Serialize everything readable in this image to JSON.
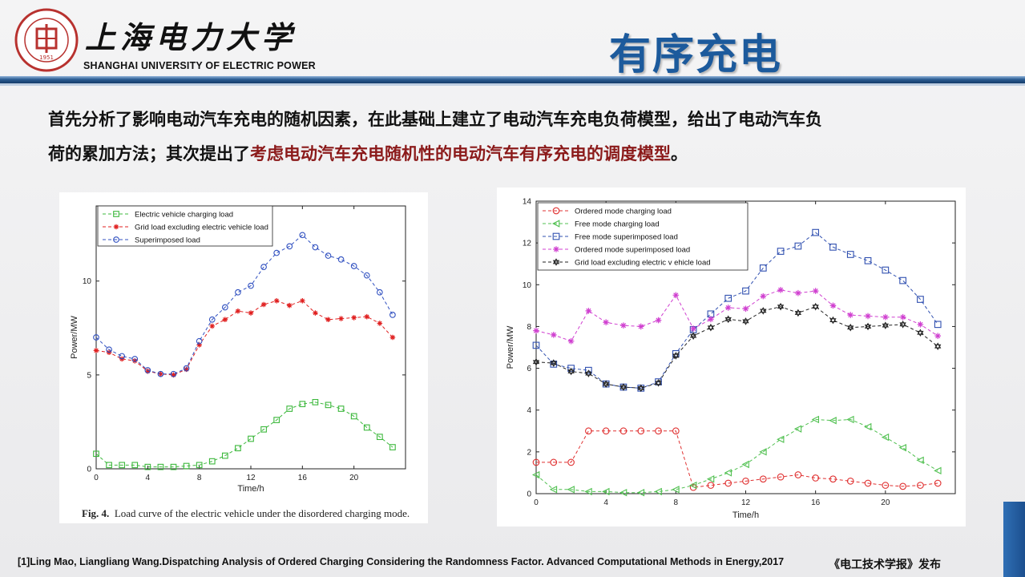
{
  "header": {
    "university_cn": "上海电力大学",
    "university_en": "SHANGHAI UNIVERSITY OF ELECTRIC POWER",
    "seal_year": "1951",
    "slide_title": "有序充电"
  },
  "intro": {
    "line1": "首先分析了影响电动汽车充电的随机因素，在此基础上建立了电动汽车充电负荷模型，给出了电动汽车负",
    "line2_prefix": "荷的累加方法；其次提出了",
    "line2_highlight": "考虑电动汽车充电随机性的电动汽车有序充电的调度模型",
    "line2_suffix": "。",
    "highlight_color": "#8b1a1a"
  },
  "figure_left_caption": {
    "label": "Fig. 4.",
    "text": "Load curve of the electric vehicle under the disordered charging mode."
  },
  "footer": {
    "reference": "[1]Ling Mao, Liangliang Wang.Dispatching Analysis of Ordered Charging Considering the Randomness Factor. Advanced Computational Methods in Energy,2017",
    "publisher": "《电工技术学报》发布"
  },
  "colors": {
    "title_blue": "#1c5a9c",
    "accent_blue": "#2c5d93"
  },
  "chart_data": [
    {
      "type": "line",
      "xlabel": "Time/h",
      "ylabel": "Power/MW",
      "xlim": [
        0,
        24
      ],
      "ylim": [
        0,
        14
      ],
      "xticks": [
        0,
        4,
        8,
        12,
        16,
        20
      ],
      "yticks": [
        0,
        5,
        10
      ],
      "grid": false,
      "legend_position": "top-left",
      "x": [
        0,
        1,
        2,
        3,
        4,
        5,
        6,
        7,
        8,
        9,
        10,
        11,
        12,
        13,
        14,
        15,
        16,
        17,
        18,
        19,
        20,
        21,
        22,
        23
      ],
      "series": [
        {
          "name": "Electric vehicle charging load",
          "color": "#3cb83c",
          "marker": "square",
          "values": [
            0.8,
            0.2,
            0.2,
            0.2,
            0.1,
            0.1,
            0.1,
            0.15,
            0.2,
            0.4,
            0.7,
            1.1,
            1.6,
            2.1,
            2.6,
            3.2,
            3.45,
            3.55,
            3.4,
            3.2,
            2.8,
            2.2,
            1.7,
            1.15
          ]
        },
        {
          "name": "Grid load excluding electric vehicle load",
          "color": "#e02020",
          "marker": "star",
          "values": [
            6.3,
            6.2,
            5.85,
            5.75,
            5.2,
            5.05,
            5.0,
            5.3,
            6.6,
            7.6,
            7.95,
            8.4,
            8.3,
            8.75,
            8.95,
            8.7,
            8.95,
            8.3,
            7.95,
            8.0,
            8.05,
            8.1,
            7.75,
            7.0
          ]
        },
        {
          "name": "Superimposed load",
          "color": "#3050c0",
          "marker": "circle",
          "values": [
            7.0,
            6.35,
            6.0,
            5.85,
            5.25,
            5.05,
            5.05,
            5.35,
            6.8,
            7.95,
            8.6,
            9.4,
            9.75,
            10.75,
            11.5,
            11.85,
            12.45,
            11.8,
            11.35,
            11.15,
            10.8,
            10.3,
            9.4,
            8.2
          ]
        }
      ]
    },
    {
      "type": "line",
      "xlabel": "Time/h",
      "ylabel": "Power/MW",
      "xlim": [
        0,
        24
      ],
      "ylim": [
        0,
        14
      ],
      "xticks": [
        0,
        4,
        8,
        12,
        16,
        20
      ],
      "yticks": [
        0,
        2,
        4,
        6,
        8,
        10,
        12,
        14
      ],
      "grid": false,
      "legend_position": "top-left",
      "x": [
        0,
        1,
        2,
        3,
        4,
        5,
        6,
        7,
        8,
        9,
        10,
        11,
        12,
        13,
        14,
        15,
        16,
        17,
        18,
        19,
        20,
        21,
        22,
        23
      ],
      "series": [
        {
          "name": "Ordered mode charging load",
          "color": "#e03030",
          "marker": "circle",
          "values": [
            1.5,
            1.5,
            1.5,
            3.0,
            3.0,
            3.0,
            3.0,
            3.0,
            3.0,
            0.3,
            0.4,
            0.5,
            0.6,
            0.7,
            0.8,
            0.9,
            0.75,
            0.7,
            0.6,
            0.5,
            0.4,
            0.35,
            0.4,
            0.5
          ]
        },
        {
          "name": "Free mode charging load",
          "color": "#50c050",
          "marker": "triangle",
          "values": [
            0.9,
            0.2,
            0.2,
            0.1,
            0.1,
            0.05,
            0.05,
            0.1,
            0.2,
            0.4,
            0.7,
            1.0,
            1.4,
            2.0,
            2.6,
            3.1,
            3.55,
            3.5,
            3.55,
            3.2,
            2.7,
            2.2,
            1.6,
            1.1
          ]
        },
        {
          "name": "Free mode superimposed load",
          "color": "#3050b0",
          "marker": "square",
          "values": [
            7.1,
            6.2,
            6.0,
            5.9,
            5.25,
            5.1,
            5.05,
            5.35,
            6.7,
            7.85,
            8.6,
            9.35,
            9.7,
            10.8,
            11.6,
            11.85,
            12.5,
            11.8,
            11.45,
            11.15,
            10.7,
            10.2,
            9.3,
            8.1
          ]
        },
        {
          "name": "Ordered mode superimposed load",
          "color": "#d040d0",
          "marker": "star",
          "values": [
            7.8,
            7.6,
            7.3,
            8.75,
            8.2,
            8.05,
            8.0,
            8.3,
            9.5,
            7.9,
            8.35,
            8.9,
            8.85,
            9.45,
            9.75,
            9.6,
            9.7,
            9.0,
            8.55,
            8.5,
            8.45,
            8.45,
            8.1,
            7.55
          ]
        },
        {
          "name": "Grid load excluding electric v ehicle load",
          "color": "#222222",
          "marker": "hexstar",
          "values": [
            6.3,
            6.25,
            5.85,
            5.75,
            5.25,
            5.1,
            5.05,
            5.3,
            6.6,
            7.55,
            7.95,
            8.35,
            8.25,
            8.75,
            8.95,
            8.65,
            8.95,
            8.3,
            7.95,
            8.0,
            8.05,
            8.1,
            7.7,
            7.05
          ]
        }
      ]
    }
  ]
}
